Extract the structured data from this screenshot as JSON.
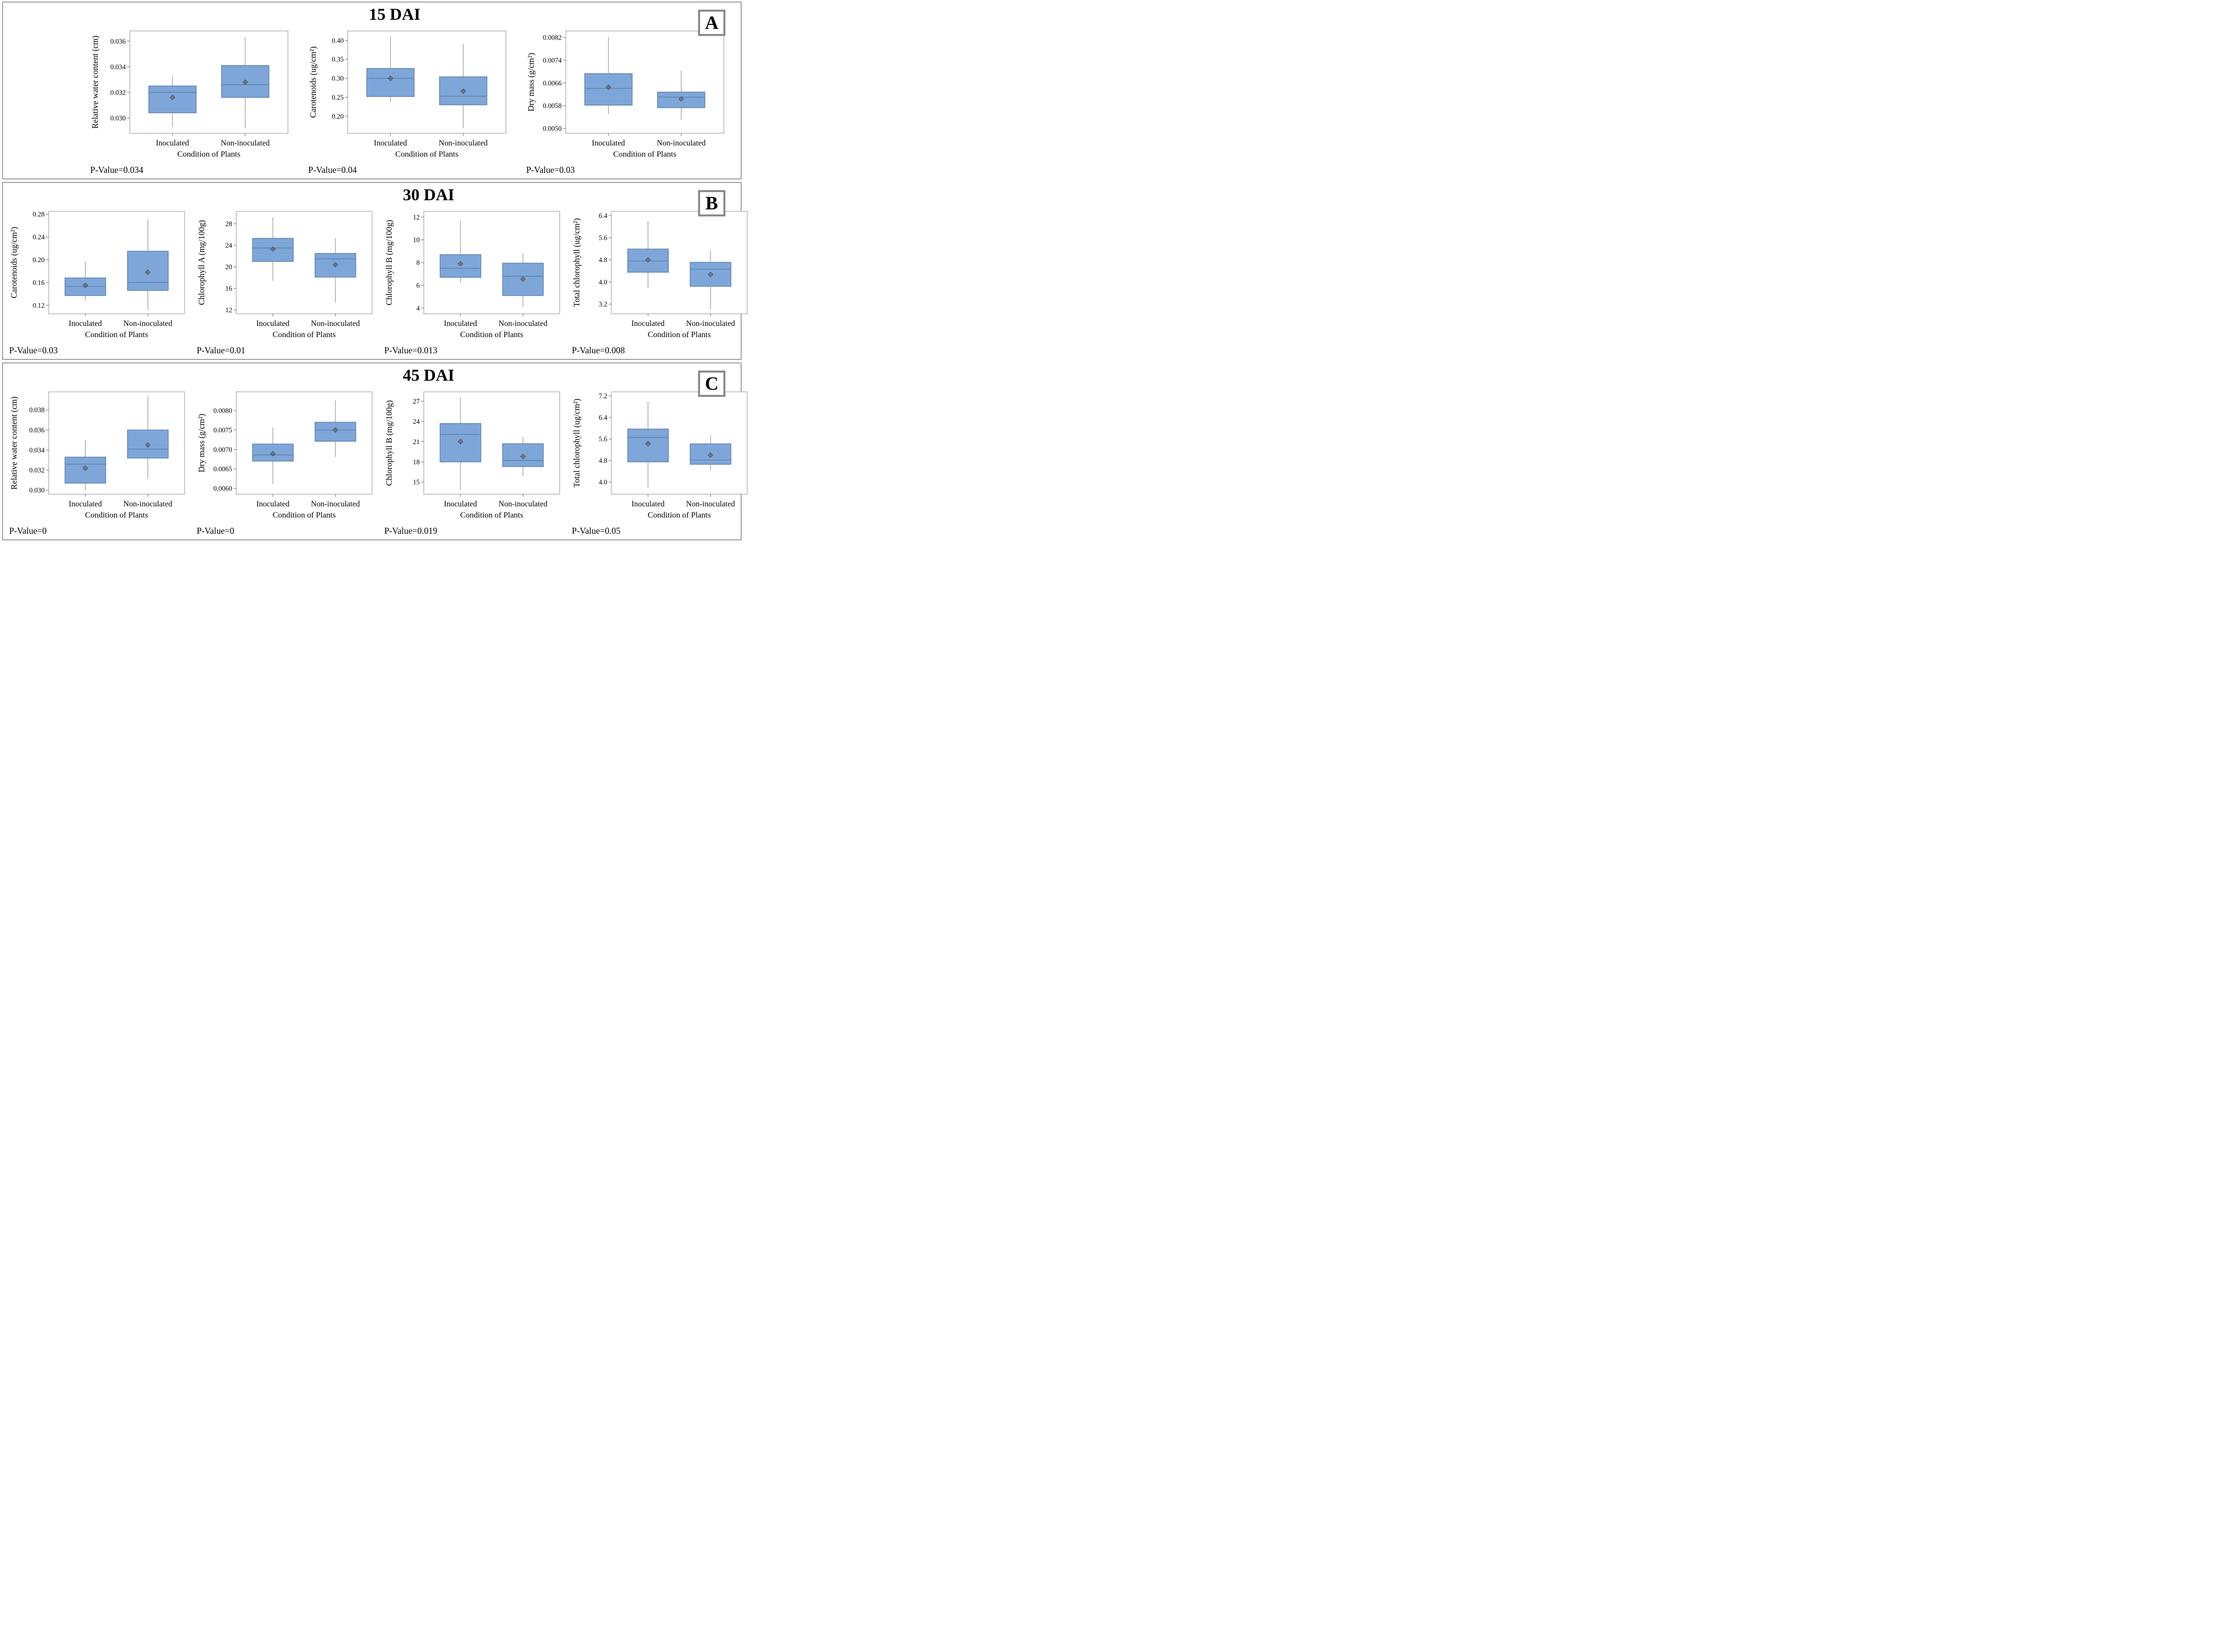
{
  "colors": {
    "box_fill": "#7EA6D9",
    "box_stroke": "#5B7CA6",
    "median": "#5B7CA6",
    "whisker": "#9E9E9E",
    "mean_marker": "#4A4A4A",
    "plot_border": "#B5B5B5",
    "panel_border": "#A0A0A0",
    "text": "#000000"
  },
  "chart_data": [
    {
      "panel": "A",
      "title": "15 DAI",
      "badge": "A",
      "charts": [
        {
          "type": "box",
          "ylabel": "Relative water content (cm)",
          "xlabel": "Condition of Plants",
          "categories": [
            "Inoculated",
            "Non-inoculated"
          ],
          "ylim": [
            0.0288,
            0.0368
          ],
          "yticks": [
            {
              "value": 0.03,
              "label": "0.030"
            },
            {
              "value": 0.032,
              "label": "0.032"
            },
            {
              "value": 0.034,
              "label": "0.034"
            },
            {
              "value": 0.036,
              "label": "0.036"
            }
          ],
          "p_value_label": "P-Value=0.034",
          "series": [
            {
              "name": "Inoculated",
              "whisker_low": 0.0293,
              "q1": 0.0304,
              "median": 0.032,
              "q3": 0.0325,
              "whisker_high": 0.0333,
              "mean": 0.0316
            },
            {
              "name": "Non-inoculated",
              "whisker_low": 0.0292,
              "q1": 0.0316,
              "median": 0.0326,
              "q3": 0.0341,
              "whisker_high": 0.0363,
              "mean": 0.0328
            }
          ]
        },
        {
          "type": "box",
          "ylabel": "Carotenoids (ug/cm²)",
          "xlabel": "Condition of Plants",
          "categories": [
            "Inoculated",
            "Non-inoculated"
          ],
          "ylim": [
            0.155,
            0.425
          ],
          "yticks": [
            {
              "value": 0.2,
              "label": "0.20"
            },
            {
              "value": 0.25,
              "label": "0.25"
            },
            {
              "value": 0.3,
              "label": "0.30"
            },
            {
              "value": 0.35,
              "label": "0.35"
            },
            {
              "value": 0.4,
              "label": "0.40"
            }
          ],
          "p_value_label": "P-Value=0.04",
          "series": [
            {
              "name": "Inoculated",
              "whisker_low": 0.237,
              "q1": 0.252,
              "median": 0.3,
              "q3": 0.326,
              "whisker_high": 0.411,
              "mean": 0.3
            },
            {
              "name": "Non-inoculated",
              "whisker_low": 0.168,
              "q1": 0.23,
              "median": 0.253,
              "q3": 0.304,
              "whisker_high": 0.391,
              "mean": 0.266
            }
          ]
        },
        {
          "type": "box",
          "ylabel": "Dry mass (g/cm²)",
          "xlabel": "Condition of Plants",
          "categories": [
            "Inoculated",
            "Non-inoculated"
          ],
          "ylim": [
            0.00483,
            0.00843
          ],
          "yticks": [
            {
              "value": 0.005,
              "label": "0.0050"
            },
            {
              "value": 0.0058,
              "label": "0.0058"
            },
            {
              "value": 0.0066,
              "label": "0.0066"
            },
            {
              "value": 0.0074,
              "label": "0.0074"
            },
            {
              "value": 0.0082,
              "label": "0.0082"
            }
          ],
          "p_value_label": "P-Value=0.03",
          "series": [
            {
              "name": "Inoculated",
              "whisker_low": 0.00551,
              "q1": 0.00582,
              "median": 0.00641,
              "q3": 0.00693,
              "whisker_high": 0.00822,
              "mean": 0.00645
            },
            {
              "name": "Non-inoculated",
              "whisker_low": 0.0053,
              "q1": 0.00573,
              "median": 0.0061,
              "q3": 0.00628,
              "whisker_high": 0.00704,
              "mean": 0.00604
            }
          ]
        }
      ]
    },
    {
      "panel": "B",
      "title": "30 DAI",
      "badge": "B",
      "charts": [
        {
          "type": "box",
          "ylabel": "Carotenoids (ug/cm²)",
          "xlabel": "Condition of Plants",
          "categories": [
            "Inoculated",
            "Non-inoculated"
          ],
          "ylim": [
            0.105,
            0.285
          ],
          "yticks": [
            {
              "value": 0.12,
              "label": "0.12"
            },
            {
              "value": 0.16,
              "label": "0.16"
            },
            {
              "value": 0.2,
              "label": "0.20"
            },
            {
              "value": 0.24,
              "label": "0.24"
            },
            {
              "value": 0.28,
              "label": "0.28"
            }
          ],
          "p_value_label": "P-Value=0.03",
          "series": [
            {
              "name": "Inoculated",
              "whisker_low": 0.128,
              "q1": 0.137,
              "median": 0.153,
              "q3": 0.168,
              "whisker_high": 0.197,
              "mean": 0.155
            },
            {
              "name": "Non-inoculated",
              "whisker_low": 0.112,
              "q1": 0.146,
              "median": 0.16,
              "q3": 0.215,
              "whisker_high": 0.271,
              "mean": 0.178
            }
          ]
        },
        {
          "type": "box",
          "ylabel": "Chlorophyll A (mg/100g)",
          "xlabel": "Condition of Plants",
          "categories": [
            "Inoculated",
            "Non-inoculated"
          ],
          "ylim": [
            11.3,
            30.3
          ],
          "yticks": [
            {
              "value": 12,
              "label": "12"
            },
            {
              "value": 16,
              "label": "16"
            },
            {
              "value": 20,
              "label": "20"
            },
            {
              "value": 24,
              "label": "24"
            },
            {
              "value": 28,
              "label": "28"
            }
          ],
          "p_value_label": "P-Value=0.01",
          "series": [
            {
              "name": "Inoculated",
              "whisker_low": 17.4,
              "q1": 21.0,
              "median": 23.5,
              "q3": 25.3,
              "whisker_high": 29.2,
              "mean": 23.3
            },
            {
              "name": "Non-inoculated",
              "whisker_low": 13.4,
              "q1": 18.1,
              "median": 21.5,
              "q3": 22.5,
              "whisker_high": 25.4,
              "mean": 20.4
            }
          ]
        },
        {
          "type": "box",
          "ylabel": "Chlorophyll B (mg/100g)",
          "xlabel": "Condition of Plants",
          "categories": [
            "Inoculated",
            "Non-inoculated"
          ],
          "ylim": [
            3.5,
            12.5
          ],
          "yticks": [
            {
              "value": 4,
              "label": "4"
            },
            {
              "value": 6,
              "label": "6"
            },
            {
              "value": 8,
              "label": "8"
            },
            {
              "value": 10,
              "label": "10"
            },
            {
              "value": 12,
              "label": "12"
            }
          ],
          "p_value_label": "P-Value=0.013",
          "series": [
            {
              "name": "Inoculated",
              "whisker_low": 6.2,
              "q1": 6.7,
              "median": 7.5,
              "q3": 8.7,
              "whisker_high": 11.7,
              "mean": 7.9
            },
            {
              "name": "Non-inoculated",
              "whisker_low": 4.1,
              "q1": 5.1,
              "median": 6.8,
              "q3": 7.95,
              "whisker_high": 8.8,
              "mean": 6.55
            }
          ]
        },
        {
          "type": "box",
          "ylabel": "Total chlorophyll (ug/cm²)",
          "xlabel": "Condition of Plants",
          "categories": [
            "Inoculated",
            "Non-inoculated"
          ],
          "ylim": [
            2.85,
            6.55
          ],
          "yticks": [
            {
              "value": 3.2,
              "label": "3.2"
            },
            {
              "value": 4.0,
              "label": "4.0"
            },
            {
              "value": 4.8,
              "label": "4.8"
            },
            {
              "value": 5.6,
              "label": "5.6"
            },
            {
              "value": 6.4,
              "label": "6.4"
            }
          ],
          "p_value_label": "P-Value=0.008",
          "series": [
            {
              "name": "Inoculated",
              "whisker_low": 3.77,
              "q1": 4.35,
              "median": 4.76,
              "q3": 5.19,
              "whisker_high": 6.2,
              "mean": 4.8
            },
            {
              "name": "Non-inoculated",
              "whisker_low": 3.0,
              "q1": 3.84,
              "median": 4.46,
              "q3": 4.71,
              "whisker_high": 5.14,
              "mean": 4.27
            }
          ]
        }
      ]
    },
    {
      "panel": "C",
      "title": "45 DAI",
      "badge": "C",
      "charts": [
        {
          "type": "box",
          "ylabel": "Relative water content (cm)",
          "xlabel": "Condition of Plants",
          "categories": [
            "Inoculated",
            "Non-inoculated"
          ],
          "ylim": [
            0.0296,
            0.0398
          ],
          "yticks": [
            {
              "value": 0.03,
              "label": "0.030"
            },
            {
              "value": 0.032,
              "label": "0.032"
            },
            {
              "value": 0.034,
              "label": "0.034"
            },
            {
              "value": 0.036,
              "label": "0.036"
            },
            {
              "value": 0.038,
              "label": "0.038"
            }
          ],
          "p_value_label": "P-Value=0",
          "series": [
            {
              "name": "Inoculated",
              "whisker_low": 0.03,
              "q1": 0.0307,
              "median": 0.0326,
              "q3": 0.0333,
              "whisker_high": 0.035,
              "mean": 0.0322
            },
            {
              "name": "Non-inoculated",
              "whisker_low": 0.0311,
              "q1": 0.0332,
              "median": 0.0341,
              "q3": 0.036,
              "whisker_high": 0.0394,
              "mean": 0.0345
            }
          ]
        },
        {
          "type": "box",
          "ylabel": "Dry mass (g/cm²)",
          "xlabel": "Condition of Plants",
          "categories": [
            "Inoculated",
            "Non-inoculated"
          ],
          "ylim": [
            0.00585,
            0.00848
          ],
          "yticks": [
            {
              "value": 0.006,
              "label": "0,0060"
            },
            {
              "value": 0.0065,
              "label": "0.0065"
            },
            {
              "value": 0.007,
              "label": "0.0070"
            },
            {
              "value": 0.0075,
              "label": "0.0075"
            },
            {
              "value": 0.008,
              "label": "0.0080"
            }
          ],
          "p_value_label": "P-Value=0",
          "series": [
            {
              "name": "Inoculated",
              "whisker_low": 0.00612,
              "q1": 0.0067,
              "median": 0.00686,
              "q3": 0.00714,
              "whisker_high": 0.00756,
              "mean": 0.00689
            },
            {
              "name": "Non-inoculated",
              "whisker_low": 0.0068,
              "q1": 0.00721,
              "median": 0.0075,
              "q3": 0.0077,
              "whisker_high": 0.00826,
              "mean": 0.0075
            }
          ]
        },
        {
          "type": "box",
          "ylabel": "Chlorophyll B (mg/100g)",
          "xlabel": "Condition of Plants",
          "categories": [
            "Inoculated",
            "Non-inoculated"
          ],
          "ylim": [
            13.2,
            28.4
          ],
          "yticks": [
            {
              "value": 15,
              "label": "15"
            },
            {
              "value": 18,
              "label": "18"
            },
            {
              "value": 21,
              "label": "21"
            },
            {
              "value": 24,
              "label": "24"
            },
            {
              "value": 27,
              "label": "27"
            }
          ],
          "p_value_label": "P-Value=0.019",
          "series": [
            {
              "name": "Inoculated",
              "whisker_low": 13.9,
              "q1": 18.0,
              "median": 22.1,
              "q3": 23.7,
              "whisker_high": 27.6,
              "mean": 21.0
            },
            {
              "name": "Non-inoculated",
              "whisker_low": 15.9,
              "q1": 17.3,
              "median": 18.2,
              "q3": 20.7,
              "whisker_high": 21.7,
              "mean": 18.8
            }
          ]
        },
        {
          "type": "box",
          "ylabel": "Total chlorophyll (ug/cm²)",
          "xlabel": "Condition of Plants",
          "categories": [
            "Inoculated",
            "Non-inoculated"
          ],
          "ylim": [
            3.55,
            7.35
          ],
          "yticks": [
            {
              "value": 4.0,
              "label": "4.0"
            },
            {
              "value": 4.8,
              "label": "4.8"
            },
            {
              "value": 5.6,
              "label": "5.6"
            },
            {
              "value": 6.4,
              "label": "6.4"
            },
            {
              "value": 7.2,
              "label": "7.2"
            }
          ],
          "p_value_label": "P-Value=0.05",
          "series": [
            {
              "name": "Inoculated",
              "whisker_low": 3.79,
              "q1": 4.75,
              "median": 5.66,
              "q3": 5.97,
              "whisker_high": 6.98,
              "mean": 5.42
            },
            {
              "name": "Non-inoculated",
              "whisker_low": 4.44,
              "q1": 4.66,
              "median": 4.82,
              "q3": 5.42,
              "whisker_high": 5.74,
              "mean": 5.0
            }
          ]
        }
      ]
    }
  ]
}
